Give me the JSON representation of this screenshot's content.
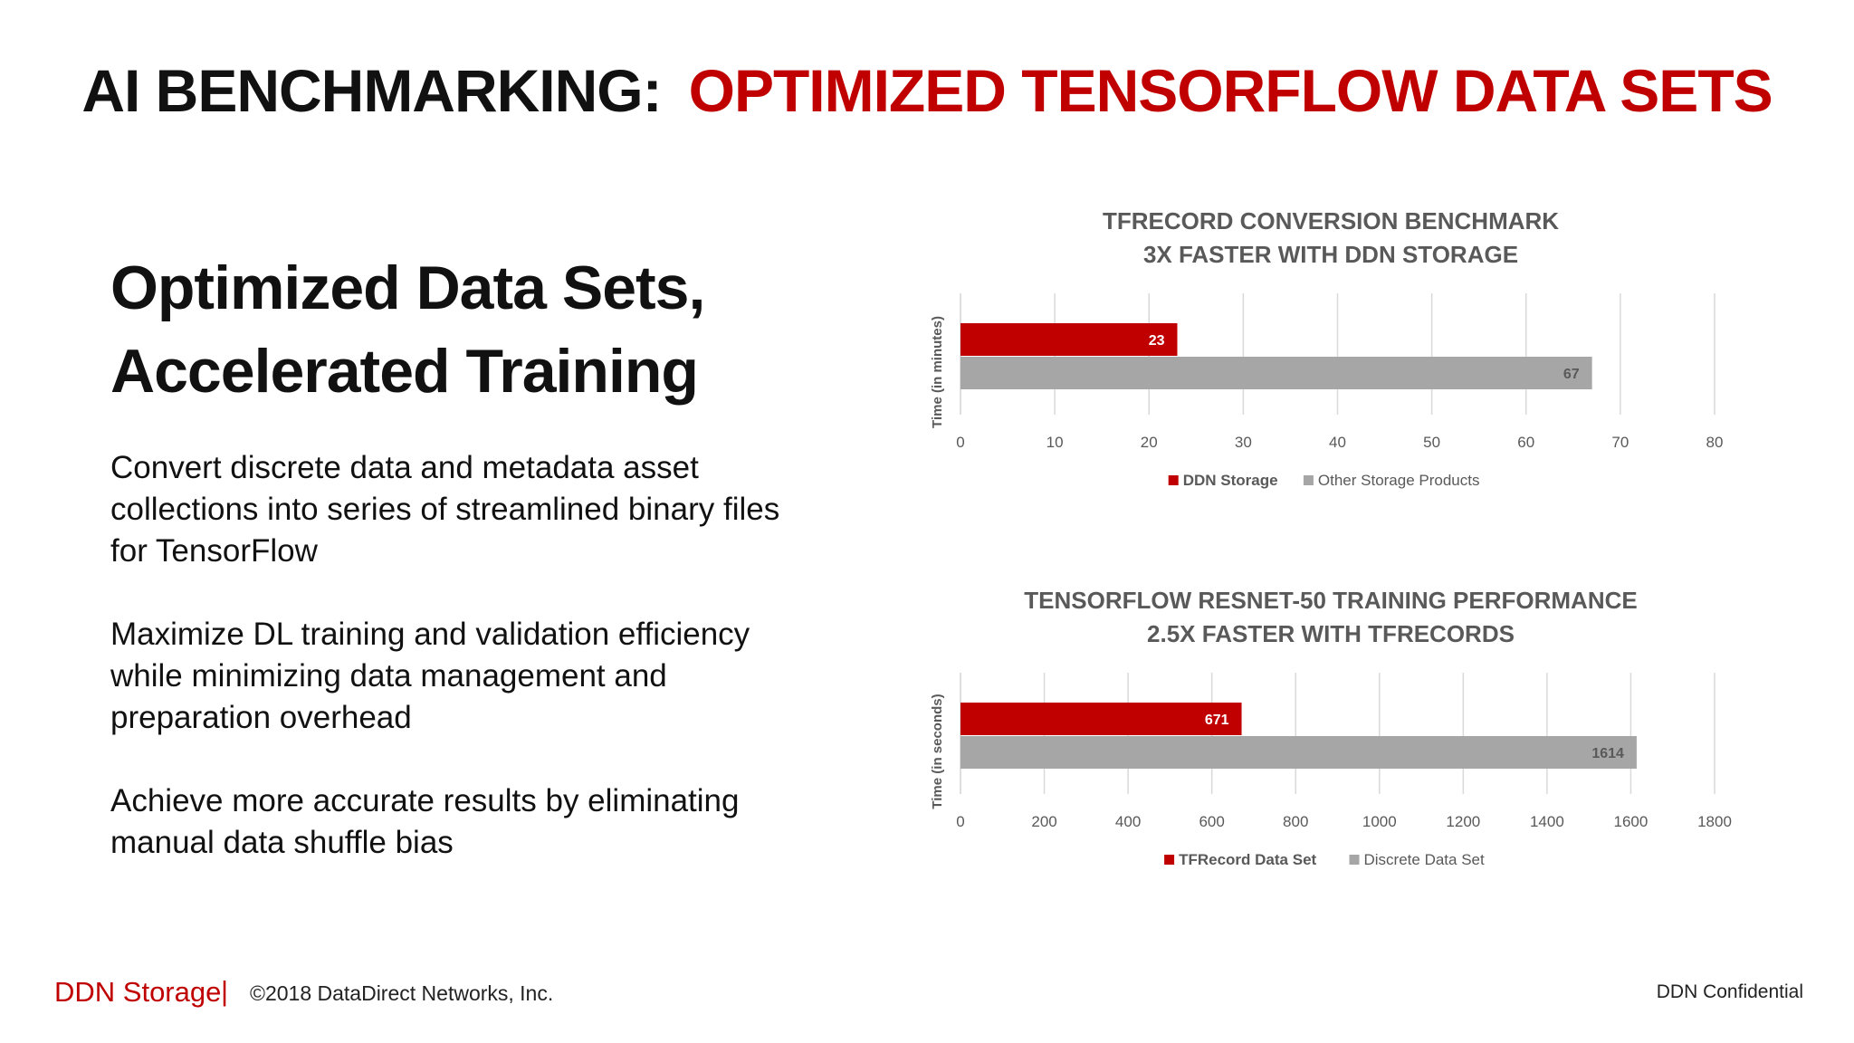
{
  "slide": {
    "title_prefix": "AI BENCHMARKING:",
    "title_accent": "OPTIMIZED TENSORFLOW DATA SETS",
    "subtitle_line1": "Optimized Data Sets,",
    "subtitle_line2": "Accelerated Training",
    "bullets": [
      "Convert discrete data and metadata asset collections into series of streamlined binary files for TensorFlow",
      "Maximize DL training and validation efficiency while minimizing data management and preparation overhead",
      "Achieve more accurate results by eliminating manual data shuffle bias"
    ]
  },
  "footer": {
    "brand": "DDN Storage",
    "separator": "|",
    "copyright": "©2018 DataDirect Networks, Inc.",
    "confidential": "DDN Confidential"
  },
  "colors": {
    "accent_red": "#c00000",
    "series_gray": "#a6a6a6",
    "title_gray": "#595959"
  },
  "chart_data": [
    {
      "type": "bar",
      "orientation": "horizontal",
      "title_line1": "TFRECORD CONVERSION BENCHMARK",
      "title_line2": "3X FASTER WITH DDN STORAGE",
      "xlabel": "",
      "ylabel": "Time (in minutes)",
      "xlim": [
        0,
        80
      ],
      "x_ticks": [
        "0",
        "10",
        "20",
        "30",
        "40",
        "50",
        "60",
        "70",
        "80"
      ],
      "grid": true,
      "legend_position": "bottom",
      "series": [
        {
          "name": "DDN Storage",
          "values": [
            23
          ],
          "labels": [
            "23"
          ],
          "color": "#c00000"
        },
        {
          "name": "Other Storage Products",
          "values": [
            67
          ],
          "labels": [
            "67"
          ],
          "color": "#a6a6a6"
        }
      ]
    },
    {
      "type": "bar",
      "orientation": "horizontal",
      "title_line1": "TENSORFLOW RESNET-50 TRAINING PERFORMANCE",
      "title_line2": "2.5X FASTER WITH TFRECORDS",
      "xlabel": "",
      "ylabel": "Time (in seconds)",
      "xlim": [
        0,
        1800
      ],
      "x_ticks": [
        "0",
        "200",
        "400",
        "600",
        "800",
        "1000",
        "1200",
        "1400",
        "1600",
        "1800"
      ],
      "grid": true,
      "legend_position": "bottom",
      "series": [
        {
          "name": "TFRecord Data Set",
          "values": [
            671
          ],
          "labels": [
            "671"
          ],
          "color": "#c00000"
        },
        {
          "name": "Discrete Data Set",
          "values": [
            1614
          ],
          "labels": [
            "1614"
          ],
          "color": "#a6a6a6"
        }
      ]
    }
  ]
}
